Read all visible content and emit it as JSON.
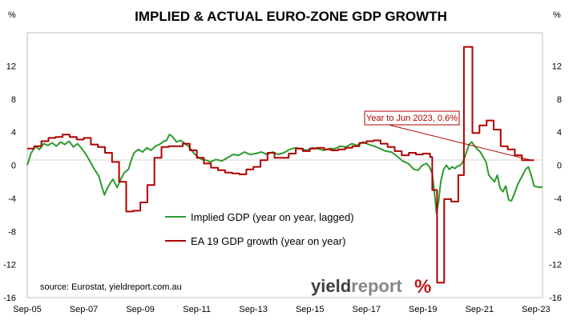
{
  "chart_data": {
    "type": "line",
    "title": "IMPLIED & ACTUAL EURO-ZONE GDP GROWTH",
    "y_unit_left": "%",
    "y_unit_right": "%",
    "ylim": [
      -16,
      16
    ],
    "yticks": [
      -16,
      -12,
      -8,
      -4,
      0,
      4,
      8,
      12
    ],
    "xlim": [
      2005.67,
      2023.9
    ],
    "xticks": [
      {
        "x": 2005.67,
        "label": "Sep-05"
      },
      {
        "x": 2007.67,
        "label": "Sep-07"
      },
      {
        "x": 2009.67,
        "label": "Sep-09"
      },
      {
        "x": 2011.67,
        "label": "Sep-11"
      },
      {
        "x": 2013.67,
        "label": "Sep-13"
      },
      {
        "x": 2015.67,
        "label": "Sep-15"
      },
      {
        "x": 2017.67,
        "label": "Sep-17"
      },
      {
        "x": 2019.67,
        "label": "Sep-19"
      },
      {
        "x": 2021.67,
        "label": "Sep-21"
      },
      {
        "x": 2023.67,
        "label": "Sep-23"
      }
    ],
    "grid": false,
    "series": [
      {
        "name": "Implied GDP (year on year, lagged)",
        "color": "#2e9a2e",
        "step": false,
        "points": [
          [
            2005.67,
            0.0
          ],
          [
            2005.8,
            1.4
          ],
          [
            2005.95,
            2.3
          ],
          [
            2006.1,
            1.9
          ],
          [
            2006.25,
            2.6
          ],
          [
            2006.4,
            2.4
          ],
          [
            2006.55,
            2.7
          ],
          [
            2006.7,
            2.3
          ],
          [
            2006.85,
            2.8
          ],
          [
            2007.0,
            2.5
          ],
          [
            2007.15,
            2.9
          ],
          [
            2007.3,
            2.2
          ],
          [
            2007.45,
            2.6
          ],
          [
            2007.6,
            2.0
          ],
          [
            2007.75,
            1.3
          ],
          [
            2007.9,
            0.4
          ],
          [
            2008.05,
            -0.5
          ],
          [
            2008.2,
            -1.3
          ],
          [
            2008.3,
            -2.5
          ],
          [
            2008.4,
            -3.6
          ],
          [
            2008.5,
            -2.8
          ],
          [
            2008.6,
            -2.2
          ],
          [
            2008.7,
            -1.7
          ],
          [
            2008.85,
            -2.7
          ],
          [
            2008.95,
            -1.9
          ],
          [
            2009.1,
            -0.9
          ],
          [
            2009.25,
            -0.5
          ],
          [
            2009.35,
            0.6
          ],
          [
            2009.45,
            1.5
          ],
          [
            2009.6,
            1.9
          ],
          [
            2009.75,
            1.6
          ],
          [
            2009.9,
            2.1
          ],
          [
            2010.05,
            1.8
          ],
          [
            2010.2,
            2.3
          ],
          [
            2010.35,
            2.5
          ],
          [
            2010.5,
            2.9
          ],
          [
            2010.6,
            3.0
          ],
          [
            2010.7,
            3.7
          ],
          [
            2010.8,
            3.5
          ],
          [
            2010.95,
            2.8
          ],
          [
            2011.1,
            3.0
          ],
          [
            2011.25,
            2.6
          ],
          [
            2011.4,
            2.2
          ],
          [
            2011.55,
            1.5
          ],
          [
            2011.7,
            1.0
          ],
          [
            2011.85,
            0.7
          ],
          [
            2012.0,
            0.6
          ],
          [
            2012.15,
            0.4
          ],
          [
            2012.35,
            0.7
          ],
          [
            2012.55,
            0.5
          ],
          [
            2012.75,
            0.9
          ],
          [
            2012.95,
            1.3
          ],
          [
            2013.15,
            1.2
          ],
          [
            2013.35,
            1.6
          ],
          [
            2013.55,
            1.3
          ],
          [
            2013.75,
            1.4
          ],
          [
            2013.95,
            1.6
          ],
          [
            2014.15,
            1.3
          ],
          [
            2014.35,
            1.6
          ],
          [
            2014.55,
            1.3
          ],
          [
            2014.75,
            1.5
          ],
          [
            2014.95,
            1.9
          ],
          [
            2015.15,
            2.1
          ],
          [
            2015.35,
            2.0
          ],
          [
            2015.55,
            1.8
          ],
          [
            2015.75,
            2.1
          ],
          [
            2015.95,
            2.0
          ],
          [
            2016.15,
            1.8
          ],
          [
            2016.35,
            2.0
          ],
          [
            2016.55,
            2.0
          ],
          [
            2016.75,
            2.3
          ],
          [
            2016.95,
            2.2
          ],
          [
            2017.15,
            2.6
          ],
          [
            2017.35,
            2.4
          ],
          [
            2017.55,
            2.8
          ],
          [
            2017.75,
            2.5
          ],
          [
            2017.95,
            2.3
          ],
          [
            2018.15,
            2.0
          ],
          [
            2018.35,
            1.7
          ],
          [
            2018.55,
            1.6
          ],
          [
            2018.75,
            1.1
          ],
          [
            2018.95,
            0.5
          ],
          [
            2019.15,
            0.2
          ],
          [
            2019.35,
            -0.5
          ],
          [
            2019.5,
            -0.6
          ],
          [
            2019.65,
            0.0
          ],
          [
            2019.8,
            0.2
          ],
          [
            2019.9,
            -0.2
          ],
          [
            2020.0,
            -1.0
          ],
          [
            2020.08,
            -3.5
          ],
          [
            2020.15,
            -5.8
          ],
          [
            2020.22,
            -4.5
          ],
          [
            2020.3,
            -2.0
          ],
          [
            2020.4,
            -0.5
          ],
          [
            2020.5,
            0.0
          ],
          [
            2020.6,
            -0.5
          ],
          [
            2020.7,
            -0.2
          ],
          [
            2020.8,
            -0.4
          ],
          [
            2020.9,
            -0.1
          ],
          [
            2021.0,
            0.0
          ],
          [
            2021.1,
            0.5
          ],
          [
            2021.2,
            1.5
          ],
          [
            2021.3,
            2.5
          ],
          [
            2021.4,
            2.8
          ],
          [
            2021.5,
            2.3
          ],
          [
            2021.6,
            1.9
          ],
          [
            2021.7,
            1.6
          ],
          [
            2021.8,
            1.0
          ],
          [
            2021.9,
            0.4
          ],
          [
            2022.0,
            -1.2
          ],
          [
            2022.1,
            -1.6
          ],
          [
            2022.2,
            -2.0
          ],
          [
            2022.3,
            -1.2
          ],
          [
            2022.4,
            -2.8
          ],
          [
            2022.5,
            -3.2
          ],
          [
            2022.6,
            -2.5
          ],
          [
            2022.7,
            -4.2
          ],
          [
            2022.8,
            -4.3
          ],
          [
            2022.9,
            -3.5
          ],
          [
            2023.0,
            -2.5
          ],
          [
            2023.1,
            -1.8
          ],
          [
            2023.2,
            -1.2
          ],
          [
            2023.3,
            -0.5
          ],
          [
            2023.4,
            -0.2
          ],
          [
            2023.5,
            -1.2
          ],
          [
            2023.6,
            -2.5
          ],
          [
            2023.7,
            -2.6
          ],
          [
            2023.8,
            -2.7
          ],
          [
            2023.9,
            -2.6
          ]
        ]
      },
      {
        "name": "EA 19 GDP growth (year on year)",
        "color": "#b00000",
        "step": true,
        "points": [
          [
            2005.67,
            2.0
          ],
          [
            2005.92,
            2.3
          ],
          [
            2006.17,
            2.9
          ],
          [
            2006.42,
            3.3
          ],
          [
            2006.67,
            3.4
          ],
          [
            2006.92,
            3.7
          ],
          [
            2007.17,
            3.4
          ],
          [
            2007.42,
            3.1
          ],
          [
            2007.67,
            3.3
          ],
          [
            2007.92,
            2.5
          ],
          [
            2008.17,
            2.2
          ],
          [
            2008.42,
            1.5
          ],
          [
            2008.67,
            0.4
          ],
          [
            2008.92,
            -2.0
          ],
          [
            2009.17,
            -5.6
          ],
          [
            2009.42,
            -5.5
          ],
          [
            2009.67,
            -4.5
          ],
          [
            2009.92,
            -2.4
          ],
          [
            2010.17,
            0.9
          ],
          [
            2010.42,
            2.2
          ],
          [
            2010.67,
            2.3
          ],
          [
            2010.92,
            2.3
          ],
          [
            2011.17,
            2.6
          ],
          [
            2011.42,
            1.8
          ],
          [
            2011.67,
            0.9
          ],
          [
            2011.92,
            0.2
          ],
          [
            2012.17,
            -0.3
          ],
          [
            2012.42,
            -0.6
          ],
          [
            2012.67,
            -0.9
          ],
          [
            2012.92,
            -1.0
          ],
          [
            2013.17,
            -1.1
          ],
          [
            2013.42,
            -0.5
          ],
          [
            2013.67,
            -0.2
          ],
          [
            2013.92,
            0.6
          ],
          [
            2014.17,
            1.5
          ],
          [
            2014.42,
            0.9
          ],
          [
            2014.67,
            0.9
          ],
          [
            2014.92,
            1.4
          ],
          [
            2015.17,
            2.0
          ],
          [
            2015.42,
            1.7
          ],
          [
            2015.67,
            2.0
          ],
          [
            2015.92,
            2.1
          ],
          [
            2016.17,
            1.9
          ],
          [
            2016.42,
            1.8
          ],
          [
            2016.67,
            1.9
          ],
          [
            2016.92,
            2.1
          ],
          [
            2017.17,
            2.3
          ],
          [
            2017.42,
            2.7
          ],
          [
            2017.67,
            2.9
          ],
          [
            2017.92,
            3.0
          ],
          [
            2018.17,
            2.6
          ],
          [
            2018.42,
            2.2
          ],
          [
            2018.67,
            1.7
          ],
          [
            2018.92,
            1.2
          ],
          [
            2019.17,
            1.5
          ],
          [
            2019.42,
            1.3
          ],
          [
            2019.67,
            1.4
          ],
          [
            2019.92,
            1.0
          ],
          [
            2020.0,
            -3.0
          ],
          [
            2020.17,
            -14.2
          ],
          [
            2020.42,
            -4.1
          ],
          [
            2020.67,
            -4.4
          ],
          [
            2020.92,
            -1.2
          ],
          [
            2021.12,
            14.3
          ],
          [
            2021.42,
            3.9
          ],
          [
            2021.67,
            4.8
          ],
          [
            2021.92,
            5.4
          ],
          [
            2022.17,
            4.3
          ],
          [
            2022.42,
            2.3
          ],
          [
            2022.67,
            1.9
          ],
          [
            2022.92,
            1.2
          ],
          [
            2023.17,
            0.6
          ],
          [
            2023.5,
            0.6
          ]
        ]
      }
    ],
    "annotations": [
      {
        "text": "Year to Jun 2023, 0.6%",
        "x": 2023.5,
        "y": 0.6
      }
    ],
    "legend": "lower-center"
  },
  "source": "source: Eurostat, yieldreport.com.au",
  "brand": {
    "part1": "yield",
    "part2": "report",
    "symbol": "%"
  }
}
